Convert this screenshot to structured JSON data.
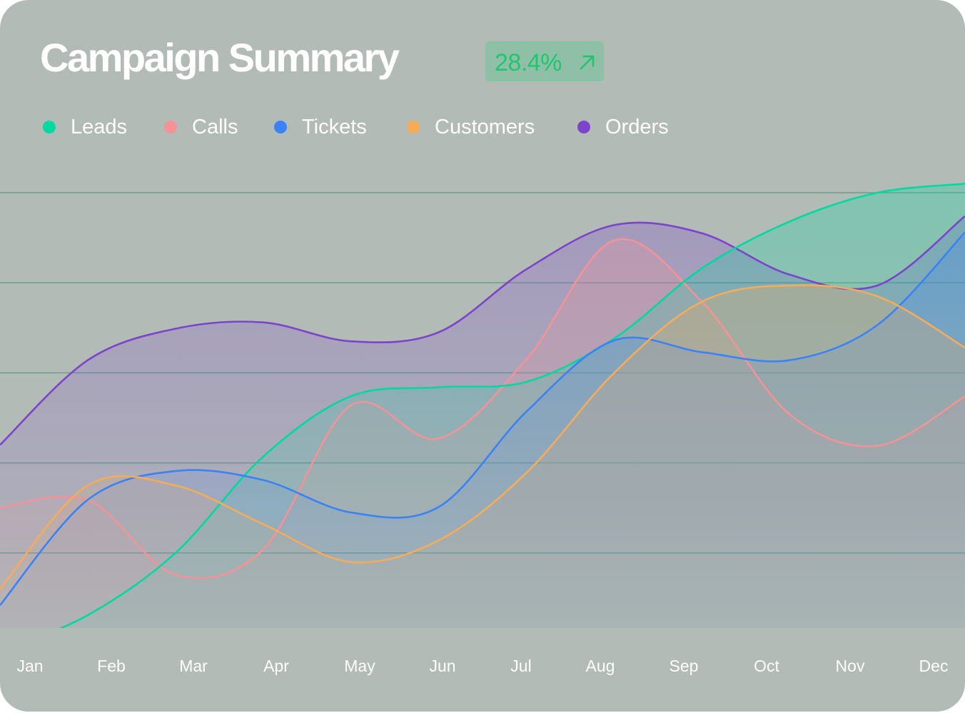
{
  "header": {
    "title": "Campaign Summary",
    "badge_value": "28.4%",
    "badge_icon": "arrow-up-right-icon",
    "badge_color": "#1fc86e"
  },
  "legend": [
    {
      "label": "Leads",
      "color": "#00d9a0"
    },
    {
      "label": "Calls",
      "color": "#f49396"
    },
    {
      "label": "Tickets",
      "color": "#3b82f6"
    },
    {
      "label": "Customers",
      "color": "#f4ac5a"
    },
    {
      "label": "Orders",
      "color": "#7c44cb"
    }
  ],
  "chart_data": {
    "type": "area",
    "title": "Campaign Summary",
    "xlabel": "",
    "ylabel": "",
    "categories": [
      "Jan",
      "Feb",
      "Mar",
      "Apr",
      "May",
      "Jun",
      "Jul",
      "Aug",
      "Sep",
      "Oct",
      "Nov",
      "Dec"
    ],
    "ylim": [
      0,
      55
    ],
    "gridlines": [
      10,
      20,
      30,
      40,
      50
    ],
    "grid": true,
    "legend_position": "top-left",
    "series": [
      {
        "name": "Orders",
        "color": "#7c44cb",
        "values": [
          22.0,
          31.4,
          34.9,
          35.6,
          33.5,
          34.5,
          41.5,
          46.4,
          45.5,
          40.9,
          39.7,
          47.4
        ]
      },
      {
        "name": "Calls",
        "color": "#f49396",
        "values": [
          15.0,
          15.9,
          7.6,
          10.4,
          26.4,
          22.7,
          31.5,
          44.7,
          37.9,
          25.4,
          21.9,
          27.4
        ]
      },
      {
        "name": "Leads",
        "color": "#00d9a0",
        "values": [
          -1.0,
          3.1,
          10.0,
          20.7,
          27.4,
          28.4,
          29.0,
          33.8,
          41.6,
          46.8,
          50.0,
          51.0
        ]
      },
      {
        "name": "Tickets",
        "color": "#3b82f6",
        "values": [
          4.2,
          15.9,
          19.1,
          18.1,
          14.5,
          15.1,
          25.7,
          33.6,
          32.3,
          31.4,
          35.3,
          45.6
        ]
      },
      {
        "name": "Customers",
        "color": "#f4ac5a",
        "values": [
          6.0,
          17.5,
          17.5,
          13.2,
          9.0,
          11.4,
          18.9,
          30.0,
          37.9,
          39.7,
          38.5,
          32.8
        ]
      }
    ]
  }
}
